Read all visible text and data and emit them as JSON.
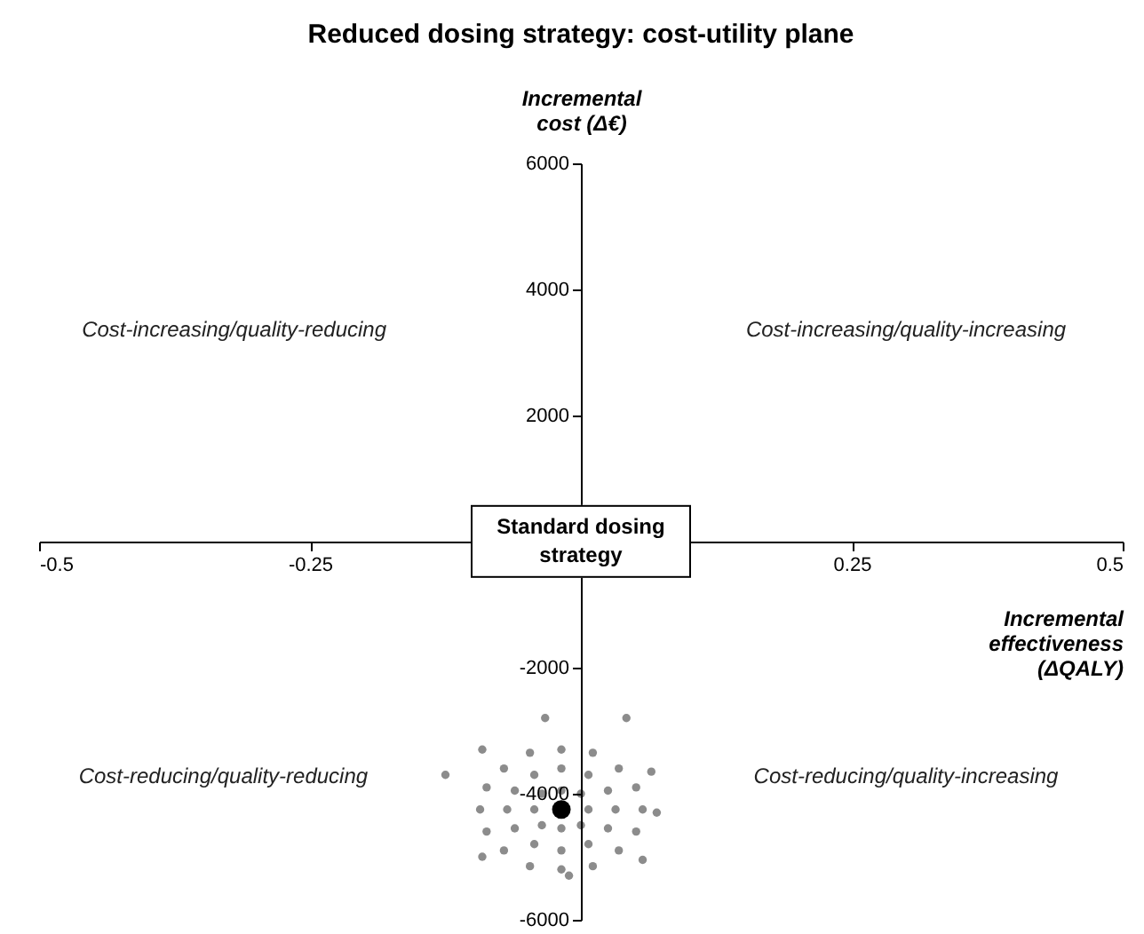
{
  "chart_data": {
    "type": "scatter",
    "title": "Reduced dosing strategy: cost-utility plane",
    "xlabel": "Incremental effectiveness (ΔQALY)",
    "ylabel": "Incremental cost (Δ€)",
    "xlim": [
      -0.5,
      0.5
    ],
    "ylim": [
      -6000,
      6000
    ],
    "xticks": [
      -0.5,
      -0.25,
      0.25,
      0.5
    ],
    "yticks": [
      -6000,
      -4000,
      -2000,
      2000,
      4000,
      6000
    ],
    "grid": false,
    "marker": "circle",
    "annotations": [
      "Cost-increasing/quality-reducing",
      "Cost-increasing/quality-increasing",
      "Cost-reducing/quality-reducing",
      "Cost-reducing/quality-increasing",
      "Standard dosing strategy"
    ],
    "series": [
      {
        "color": "#8c8c8c",
        "x": [
          0.057,
          0.051,
          0.035,
          0.011,
          -0.018,
          -0.047,
          -0.071,
          -0.087,
          -0.093,
          -0.087,
          -0.071,
          -0.047,
          -0.018,
          0.011,
          0.035,
          0.051,
          0.032,
          0.025,
          0.007,
          -0.018,
          -0.043,
          -0.061,
          -0.068,
          -0.061,
          -0.043,
          -0.018,
          0.007,
          0.025,
          0.007,
          0.0,
          -0.018,
          -0.036,
          -0.043,
          -0.036,
          -0.018,
          0.0,
          -0.033,
          0.042,
          -0.125,
          0.07,
          0.057,
          -0.091,
          0.065,
          -0.091,
          -0.011
        ],
        "values": [
          -4250,
          -3900,
          -3600,
          -3350,
          -3300,
          -3350,
          -3600,
          -3900,
          -4250,
          -4600,
          -4900,
          -5150,
          -5200,
          -5150,
          -4900,
          -4600,
          -4250,
          -3950,
          -3700,
          -3600,
          -3700,
          -3950,
          -4250,
          -4550,
          -4800,
          -4900,
          -4800,
          -4550,
          -4250,
          -4000,
          -3950,
          -4000,
          -4250,
          -4500,
          -4550,
          -4500,
          -2800,
          -2800,
          -3700,
          -4300,
          -5050,
          -3300,
          -3650,
          -5000,
          -5300
        ]
      },
      {
        "color": "#000000",
        "x": [
          -0.018
        ],
        "values": [
          -4250
        ]
      }
    ]
  }
}
